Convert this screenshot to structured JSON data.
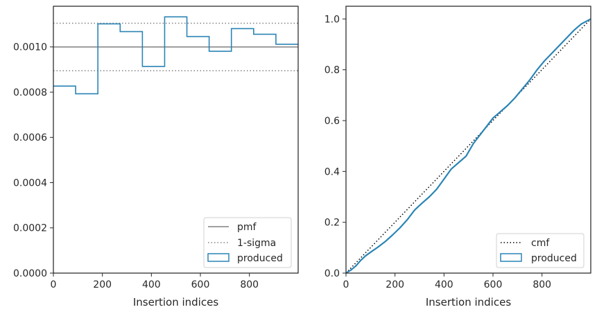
{
  "colors": {
    "produced": "#2a84b5",
    "pmf": "#808080",
    "sigma": "#808080",
    "cmf": "#000000",
    "axis": "#262626"
  },
  "chart_data": [
    {
      "type": "line",
      "step": true,
      "xlabel": "Insertion indices",
      "ylabel": "",
      "xlim": [
        0,
        999
      ],
      "ylim": [
        0,
        0.00118
      ],
      "xticks": [
        0,
        200,
        400,
        600,
        800
      ],
      "xtick_labels": [
        "0",
        "200",
        "400",
        "600",
        "800"
      ],
      "yticks": [
        0,
        0.0002,
        0.0004,
        0.0006,
        0.0008,
        0.001
      ],
      "ytick_labels": [
        "0.0000",
        "0.0002",
        "0.0004",
        "0.0006",
        "0.0008",
        "0.0010"
      ],
      "legend_position": "lower-right",
      "legend": [
        "pmf",
        "1-sigma",
        "produced"
      ],
      "series": [
        {
          "name": "pmf",
          "style": "solid",
          "y": 0.001
        },
        {
          "name": "1-sigma",
          "style": "dotted",
          "y": [
            0.000895,
            0.001105
          ]
        },
        {
          "name": "produced",
          "style": "step",
          "bin_edges": [
            0,
            90.8,
            181.6,
            272.5,
            363.3,
            454.1,
            544.9,
            635.7,
            726.5,
            817.4,
            908.2,
            999
          ],
          "values": [
            0.000827,
            0.000793,
            0.001102,
            0.001068,
            0.000914,
            0.001133,
            0.001046,
            0.000981,
            0.001081,
            0.001056,
            0.001012
          ]
        }
      ]
    },
    {
      "type": "line",
      "xlabel": "Insertion indices",
      "ylabel": "",
      "xlim": [
        0,
        999
      ],
      "ylim": [
        0,
        1.05
      ],
      "xticks": [
        0,
        200,
        400,
        600,
        800
      ],
      "xtick_labels": [
        "0",
        "200",
        "400",
        "600",
        "800"
      ],
      "yticks": [
        0,
        0.2,
        0.4,
        0.6,
        0.8,
        1.0
      ],
      "ytick_labels": [
        "0.0",
        "0.2",
        "0.4",
        "0.6",
        "0.8",
        "1.0"
      ],
      "legend_position": "lower-right",
      "legend": [
        "cmf",
        "produced"
      ],
      "series": [
        {
          "name": "cmf",
          "style": "dotted",
          "x": [
            0,
            999
          ],
          "y": [
            0,
            1.0
          ]
        },
        {
          "name": "produced",
          "style": "line",
          "x": [
            0,
            20,
            40,
            60,
            80,
            100,
            130,
            160,
            190,
            220,
            250,
            280,
            310,
            340,
            370,
            400,
            430,
            460,
            490,
            520,
            540,
            560,
            600,
            630,
            660,
            690,
            720,
            750,
            780,
            810,
            840,
            870,
            900,
            930,
            960,
            999
          ],
          "y": [
            0,
            0.012,
            0.028,
            0.05,
            0.068,
            0.082,
            0.102,
            0.124,
            0.15,
            0.178,
            0.21,
            0.248,
            0.275,
            0.3,
            0.33,
            0.37,
            0.41,
            0.435,
            0.46,
            0.51,
            0.535,
            0.56,
            0.61,
            0.635,
            0.66,
            0.69,
            0.725,
            0.76,
            0.8,
            0.835,
            0.865,
            0.895,
            0.925,
            0.955,
            0.98,
            1.0
          ]
        }
      ]
    }
  ]
}
